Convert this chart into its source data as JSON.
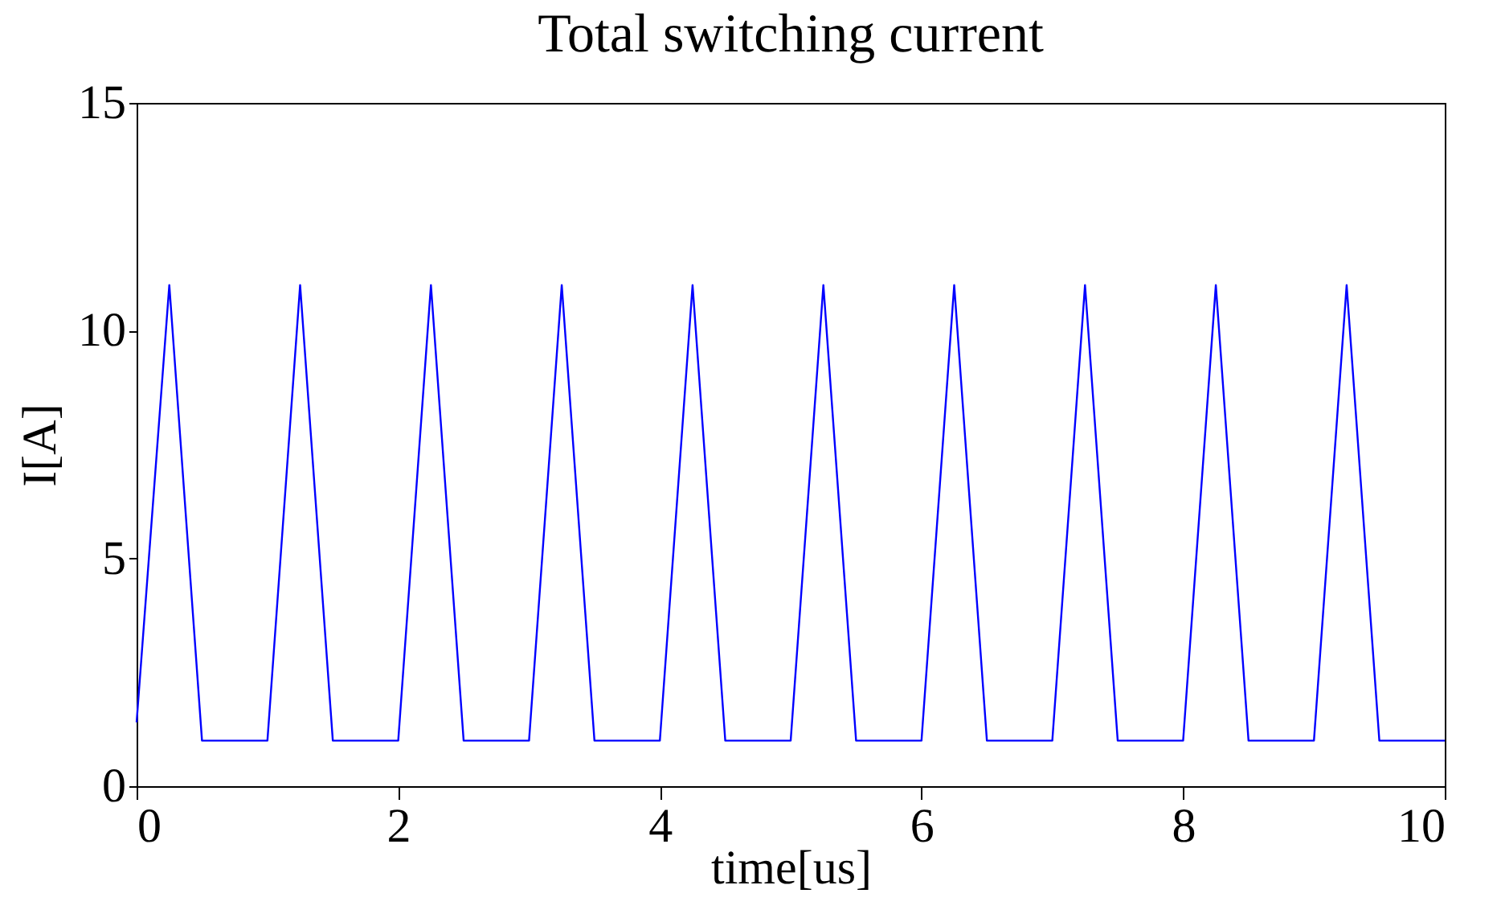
{
  "chart_data": {
    "type": "line",
    "title": "Total switching current",
    "xlabel": "time[us]",
    "ylabel": "I[A]",
    "x": [
      0,
      0.25,
      0.5,
      1,
      1.25,
      1.5,
      2,
      2.25,
      2.5,
      3,
      3.25,
      3.5,
      4,
      4.25,
      4.5,
      5,
      5.25,
      5.5,
      6,
      6.25,
      6.5,
      7,
      7.25,
      7.5,
      8,
      8.25,
      8.5,
      9,
      9.25,
      9.5,
      10
    ],
    "series": [
      {
        "color": "#0000ff",
        "values": [
          1.4,
          11,
          1,
          1,
          11,
          1,
          1,
          11,
          1,
          1,
          11,
          1,
          1,
          11,
          1,
          1,
          11,
          1,
          1,
          11,
          1,
          1,
          11,
          1,
          1,
          11,
          1,
          1,
          11,
          1,
          1
        ]
      }
    ],
    "xlim": [
      0,
      10
    ],
    "ylim": [
      0,
      15
    ],
    "xticks": [
      0,
      2,
      4,
      6,
      8,
      10
    ],
    "yticks": [
      0,
      5,
      10,
      15
    ],
    "grid": false,
    "marker": "none",
    "line_style": "solid"
  }
}
